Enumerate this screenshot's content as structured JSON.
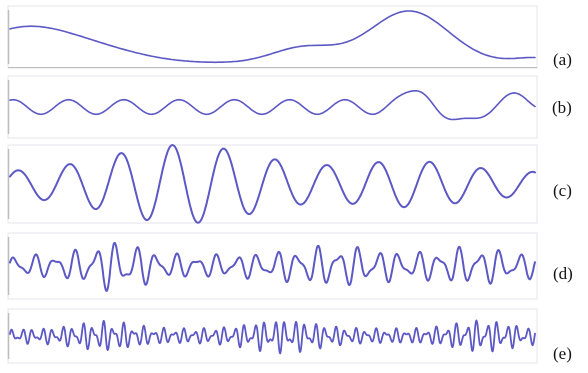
{
  "colors": {
    "wave": "#5c58c4",
    "panel_border": "#e6e6ee",
    "axis": "#bdbdbd"
  },
  "panels": [
    {
      "label": "(a)"
    },
    {
      "label": "(b)"
    },
    {
      "label": "(c)"
    },
    {
      "label": "(d)"
    },
    {
      "label": "(e)"
    }
  ]
}
